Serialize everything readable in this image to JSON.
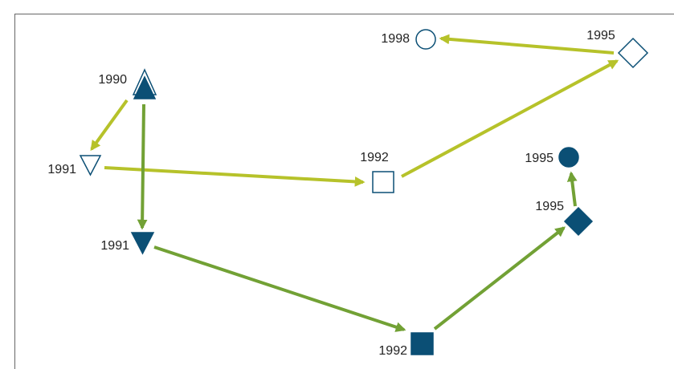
{
  "nodes": [
    {
      "label": "1990"
    },
    {
      "label": "1991"
    },
    {
      "label": "1991"
    },
    {
      "label": "1992"
    },
    {
      "label": "1992"
    },
    {
      "label": "1995"
    },
    {
      "label": "1995"
    },
    {
      "label": "1995"
    },
    {
      "label": "1998"
    }
  ]
}
